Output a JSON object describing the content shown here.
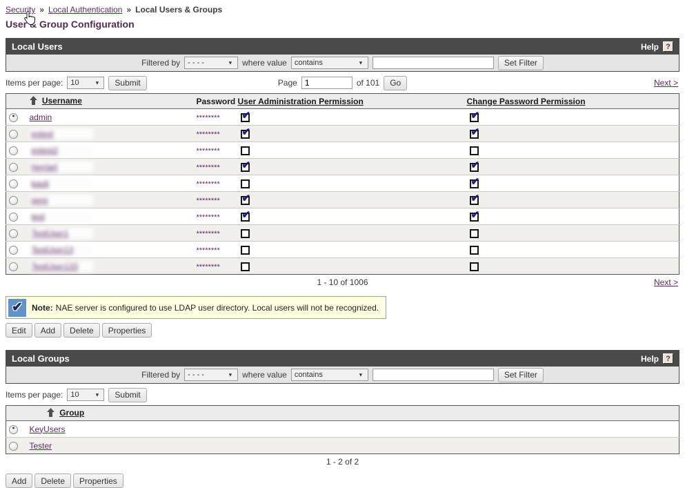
{
  "breadcrumb": {
    "links": [
      "Security",
      "Local Authentication"
    ],
    "separator": "»",
    "current": "Local Users & Groups"
  },
  "page_title": "User & Group Configuration",
  "users_section": {
    "title": "Local Users",
    "help_label": "Help",
    "help_icon": "?",
    "filter": {
      "filtered_by_label": "Filtered by",
      "filter_field_value": "- - - -",
      "where_label": "where value",
      "operator_value": "contains",
      "input_value": "",
      "set_filter_label": "Set Filter"
    },
    "pagination_top": {
      "items_per_page_label": "Items per page:",
      "items_per_page_value": "10",
      "submit_label": "Submit",
      "page_label": "Page",
      "page_value": "1",
      "of_label": "of 101",
      "go_label": "Go",
      "next_label": "Next >"
    },
    "table": {
      "headers": {
        "username": "Username",
        "password": "Password",
        "user_admin": "User Administration Permission",
        "change_pw": "Change Password Permission"
      },
      "rows": [
        {
          "username": "admin",
          "blurred": false,
          "selected": true,
          "password": "********",
          "user_admin": true,
          "change_pw": true
        },
        {
          "username": "estest",
          "blurred": true,
          "selected": false,
          "password": "********",
          "user_admin": true,
          "change_pw": true
        },
        {
          "username": "estest2",
          "blurred": true,
          "selected": false,
          "password": "********",
          "user_admin": false,
          "change_pw": false
        },
        {
          "username": "herriart",
          "blurred": true,
          "selected": false,
          "password": "********",
          "user_admin": true,
          "change_pw": true
        },
        {
          "username": "kauti",
          "blurred": true,
          "selected": false,
          "password": "********",
          "user_admin": false,
          "change_pw": true
        },
        {
          "username": "perp",
          "blurred": true,
          "selected": false,
          "password": "********",
          "user_admin": true,
          "change_pw": true
        },
        {
          "username": "test",
          "blurred": true,
          "selected": false,
          "password": "********",
          "user_admin": true,
          "change_pw": true
        },
        {
          "username": "TestUser1",
          "blurred": true,
          "selected": false,
          "password": "********",
          "user_admin": false,
          "change_pw": false
        },
        {
          "username": "TestUser13",
          "blurred": true,
          "selected": false,
          "password": "********",
          "user_admin": false,
          "change_pw": false
        },
        {
          "username": "TestUser133",
          "blurred": true,
          "selected": false,
          "password": "********",
          "user_admin": false,
          "change_pw": false
        }
      ]
    },
    "pagination_bottom": {
      "range": "1 - 10 of 1006",
      "next_label": "Next >"
    },
    "note": {
      "label": "Note:",
      "text": "NAE server is configured to use LDAP user directory.  Local users will not be recognized."
    },
    "buttons": [
      "Edit",
      "Add",
      "Delete",
      "Properties"
    ]
  },
  "groups_section": {
    "title": "Local Groups",
    "help_label": "Help",
    "help_icon": "?",
    "filter": {
      "filtered_by_label": "Filtered by",
      "filter_field_value": "- - - -",
      "where_label": "where value",
      "operator_value": "contains",
      "input_value": "",
      "set_filter_label": "Set Filter"
    },
    "pagination_top": {
      "items_per_page_label": "Items per page:",
      "items_per_page_value": "10",
      "submit_label": "Submit"
    },
    "table": {
      "header": "Group",
      "rows": [
        {
          "name": "KeyUsers",
          "selected": true
        },
        {
          "name": "Tester",
          "selected": false
        }
      ]
    },
    "range": "1 - 2 of 2",
    "buttons": [
      "Add",
      "Delete",
      "Properties"
    ]
  },
  "colors": {
    "accent_purple": "#5e2a63",
    "header_bar": "#4a4a4a",
    "note_bg": "#ffffe1",
    "check_navy": "#1c1c85"
  }
}
